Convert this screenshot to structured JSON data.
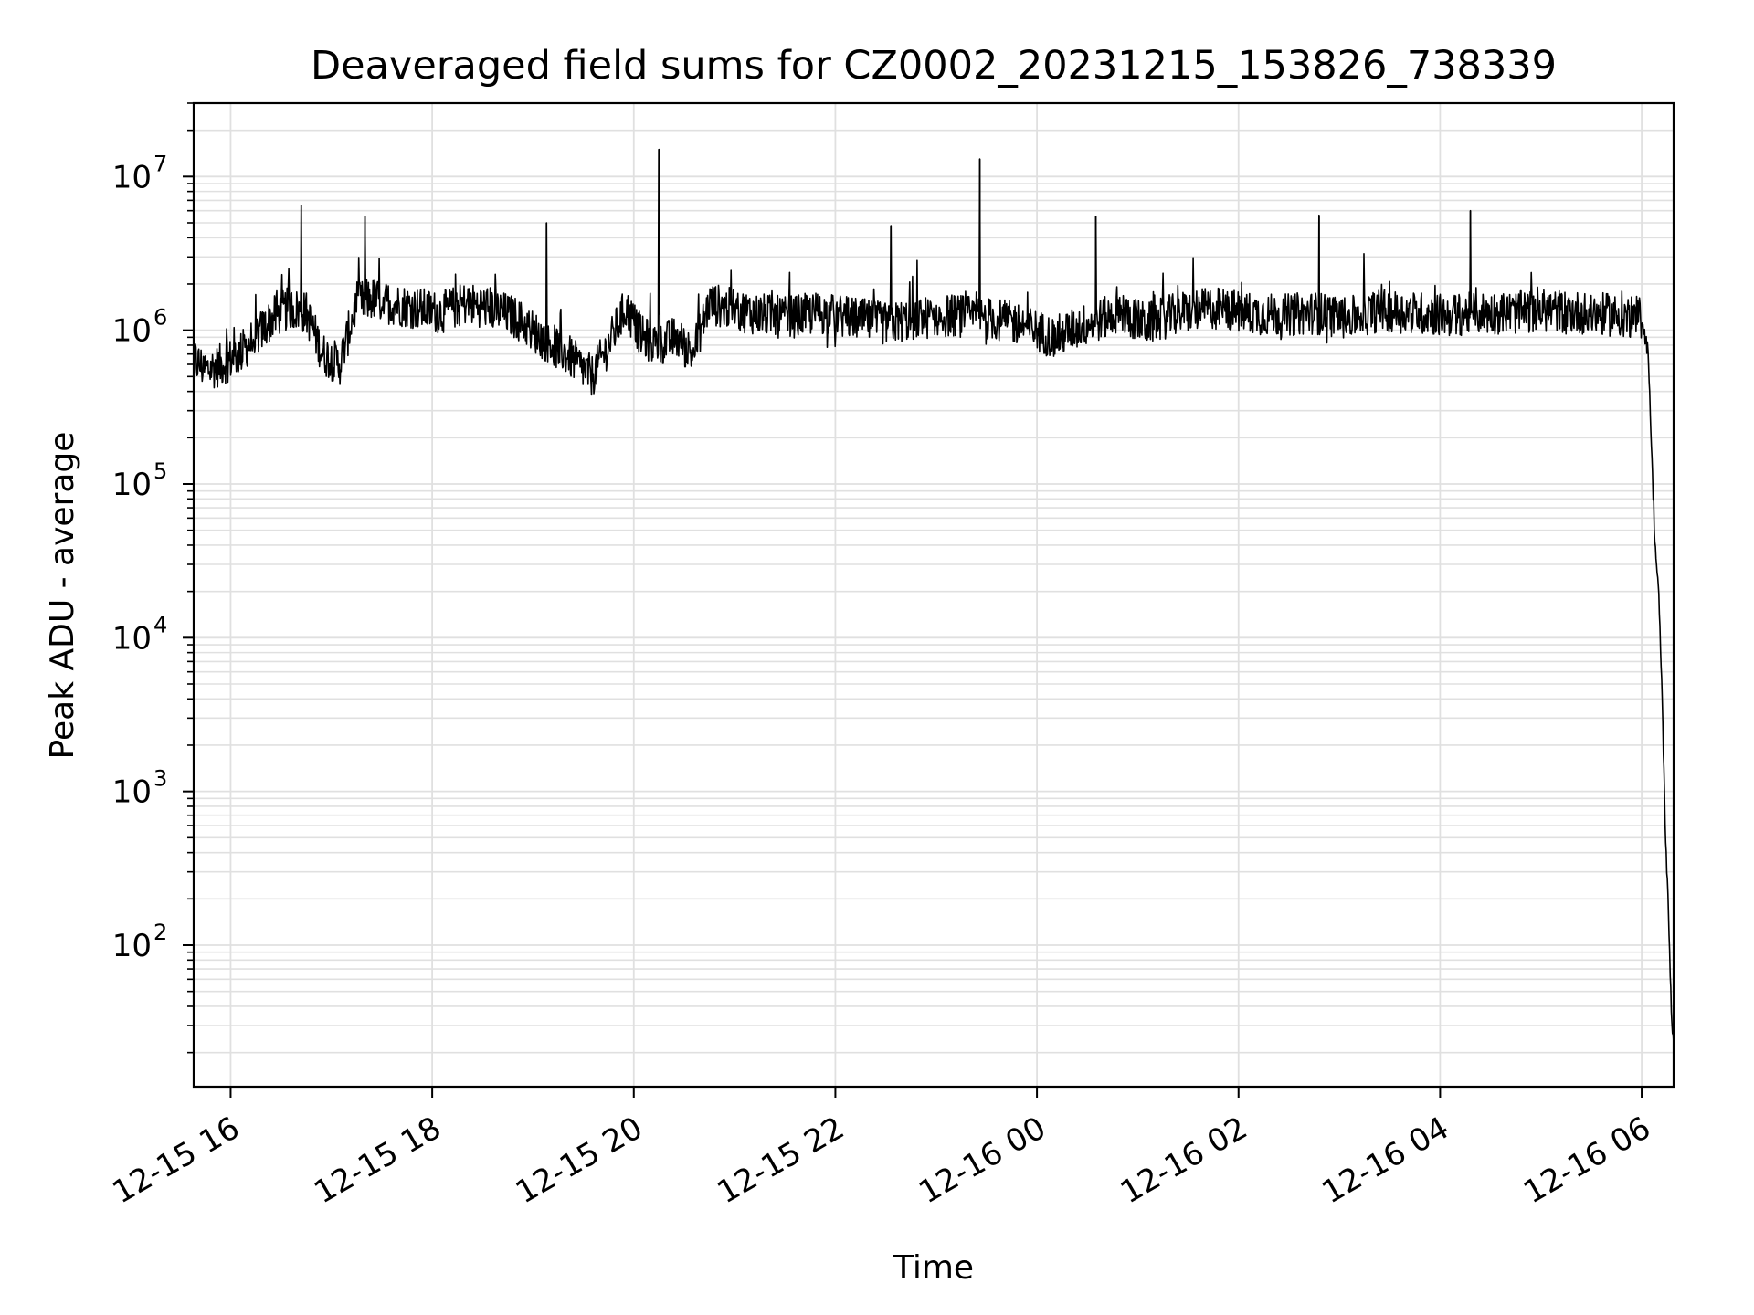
{
  "chart_data": {
    "type": "line",
    "title": "Deaveraged field sums for CZ0002_20231215_153826_738339",
    "xlabel": "Time",
    "ylabel": "Peak ADU - average",
    "yscale": "log",
    "ylim": [
      12,
      30000000
    ],
    "xlim": [
      "2023-12-15 15:38",
      "2023-12-16 06:19"
    ],
    "grid": true,
    "colors": {
      "line": "#000000",
      "grid": "#e0e0e0",
      "axes": "#000000"
    },
    "x_ticks": [
      {
        "label": "12-15 16",
        "t": "2023-12-15 16:00"
      },
      {
        "label": "12-15 18",
        "t": "2023-12-15 18:00"
      },
      {
        "label": "12-15 20",
        "t": "2023-12-15 20:00"
      },
      {
        "label": "12-15 22",
        "t": "2023-12-15 22:00"
      },
      {
        "label": "12-16 00",
        "t": "2023-12-16 00:00"
      },
      {
        "label": "12-16 02",
        "t": "2023-12-16 02:00"
      },
      {
        "label": "12-16 04",
        "t": "2023-12-16 04:00"
      },
      {
        "label": "12-16 06",
        "t": "2023-12-16 06:00"
      }
    ],
    "y_ticks": [
      {
        "base": "10",
        "exp": "2",
        "value": 100
      },
      {
        "base": "10",
        "exp": "3",
        "value": 1000
      },
      {
        "base": "10",
        "exp": "4",
        "value": 10000
      },
      {
        "base": "10",
        "exp": "5",
        "value": 100000
      },
      {
        "base": "10",
        "exp": "6",
        "value": 1000000
      },
      {
        "base": "10",
        "exp": "7",
        "value": 10000000
      }
    ],
    "series": [
      {
        "x": [
          "2023-12-15 15:38",
          "2023-12-15 15:45",
          "2023-12-15 15:55",
          "2023-12-15 16:05",
          "2023-12-15 16:15",
          "2023-12-15 16:25",
          "2023-12-15 16:35",
          "2023-12-15 16:45",
          "2023-12-15 16:55",
          "2023-12-15 17:05",
          "2023-12-15 17:15",
          "2023-12-15 17:25",
          "2023-12-15 17:35",
          "2023-12-15 17:50",
          "2023-12-15 18:05",
          "2023-12-15 18:20",
          "2023-12-15 18:35",
          "2023-12-15 18:50",
          "2023-12-15 19:05",
          "2023-12-15 19:20",
          "2023-12-15 19:35",
          "2023-12-15 19:45",
          "2023-12-15 19:55",
          "2023-12-15 20:05",
          "2023-12-15 20:15",
          "2023-12-15 20:25",
          "2023-12-15 20:35",
          "2023-12-15 20:45",
          "2023-12-15 20:55",
          "2023-12-15 21:10",
          "2023-12-15 21:30",
          "2023-12-15 21:50",
          "2023-12-15 22:10",
          "2023-12-15 22:30",
          "2023-12-15 22:50",
          "2023-12-15 23:10",
          "2023-12-15 23:30",
          "2023-12-15 23:50",
          "2023-12-16 00:10",
          "2023-12-16 00:30",
          "2023-12-16 00:50",
          "2023-12-16 01:05",
          "2023-12-16 01:25",
          "2023-12-16 01:45",
          "2023-12-16 02:05",
          "2023-12-16 02:25",
          "2023-12-16 02:45",
          "2023-12-16 03:05",
          "2023-12-16 03:25",
          "2023-12-16 03:45",
          "2023-12-16 04:05",
          "2023-12-16 04:25",
          "2023-12-16 04:45",
          "2023-12-16 05:05",
          "2023-12-16 05:25",
          "2023-12-16 05:45",
          "2023-12-16 06:00",
          "2023-12-16 06:04",
          "2023-12-16 06:06",
          "2023-12-16 06:08",
          "2023-12-16 06:10",
          "2023-12-16 06:12",
          "2023-12-16 06:14",
          "2023-12-16 06:16",
          "2023-12-16 06:18",
          "2023-12-16 06:19"
        ],
        "y": [
          650000,
          550000,
          600000,
          700000,
          900000,
          1200000,
          1400000,
          1300000,
          700000,
          600000,
          1500000,
          1600000,
          1500000,
          1400000,
          1300000,
          1500000,
          1400000,
          1200000,
          900000,
          700000,
          500000,
          800000,
          1400000,
          900000,
          800000,
          900000,
          700000,
          1500000,
          1400000,
          1300000,
          1200000,
          1300000,
          1200000,
          1100000,
          1200000,
          1250000,
          1200000,
          1100000,
          900000,
          1100000,
          1300000,
          1100000,
          1300000,
          1400000,
          1300000,
          1250000,
          1300000,
          1200000,
          1350000,
          1300000,
          1250000,
          1300000,
          1300000,
          1350000,
          1300000,
          1250000,
          1200000,
          700000,
          150000,
          40000,
          20000,
          5000,
          600,
          150,
          30,
          25
        ]
      }
    ],
    "spikes": [
      {
        "x": "2023-12-15 16:42",
        "y": 6500000
      },
      {
        "x": "2023-12-15 17:20",
        "y": 5500000
      },
      {
        "x": "2023-12-15 19:08",
        "y": 5000000
      },
      {
        "x": "2023-12-15 20:15",
        "y": 15000000
      },
      {
        "x": "2023-12-15 22:33",
        "y": 4800000
      },
      {
        "x": "2023-12-15 23:26",
        "y": 13000000
      },
      {
        "x": "2023-12-16 00:35",
        "y": 5500000
      },
      {
        "x": "2023-12-16 02:48",
        "y": 5600000
      },
      {
        "x": "2023-12-16 04:18",
        "y": 6000000
      }
    ]
  }
}
